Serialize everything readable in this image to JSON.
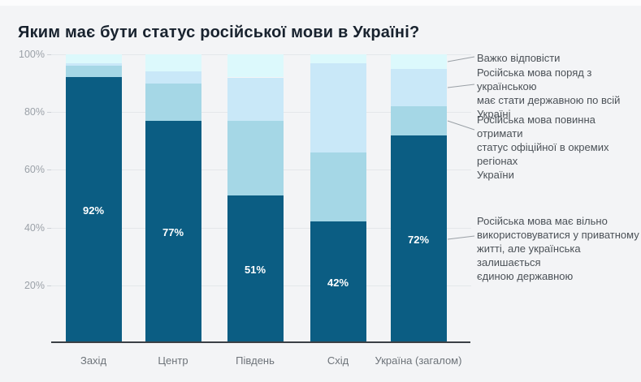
{
  "title": "Яким має бути статус російської мови в Україні?",
  "chart_data": {
    "type": "bar",
    "stacked": true,
    "title": "Яким має бути статус російської мови в Україні?",
    "categories": [
      "Захід",
      "Центр",
      "Південь",
      "Схід",
      "Україна (загалом)"
    ],
    "series": [
      {
        "name": "Російська мова має вільно використовуватися у приватному житті, але українська залишається єдиною державною",
        "color": "#0b5d83",
        "values": [
          92,
          77,
          51,
          42,
          72
        ]
      },
      {
        "name": "Російська мова повинна отримати статус офіційної в окремих регіонах України",
        "color": "#a5d7e6",
        "values": [
          4,
          13,
          26,
          24,
          10
        ]
      },
      {
        "name": "Російська мова поряд з українською має стати державною по всій Україні",
        "color": "#c9e8f8",
        "values": [
          1,
          4,
          15,
          31,
          13
        ]
      },
      {
        "name": "Важко відповісти",
        "color": "#dcf9fc",
        "values": [
          3,
          6,
          8,
          3,
          5
        ]
      }
    ],
    "bar_labels": [
      "92%",
      "77%",
      "51%",
      "42%",
      "72%"
    ],
    "y_ticks": [
      "100%",
      "80%",
      "60%",
      "40%",
      "20%"
    ],
    "ylim": [
      0,
      100
    ],
    "grid": "horizontal",
    "legend_position": "right",
    "legend": [
      {
        "label": "Важко відповісти"
      },
      {
        "label": "Російська мова поряд з українською\nмає стати державною по всій\nУкраїні"
      },
      {
        "label": "Російська мова повинна отримати\nстатус офіційної в окремих регіонах\nУкраїни"
      },
      {
        "label": "Російська мова має вільно\nвикористовуватися у приватному\nжитті, але українська залишається\nєдиною державною"
      }
    ]
  },
  "colors": {
    "background": "#f3f4f6",
    "axis_line": "#3b4045",
    "gridline": "#e4e7ea",
    "bar_dark": "#0b5d83",
    "bar_medium": "#a5d7e6",
    "bar_light": "#c9e8f8",
    "bar_pale": "#dcf9fc"
  }
}
